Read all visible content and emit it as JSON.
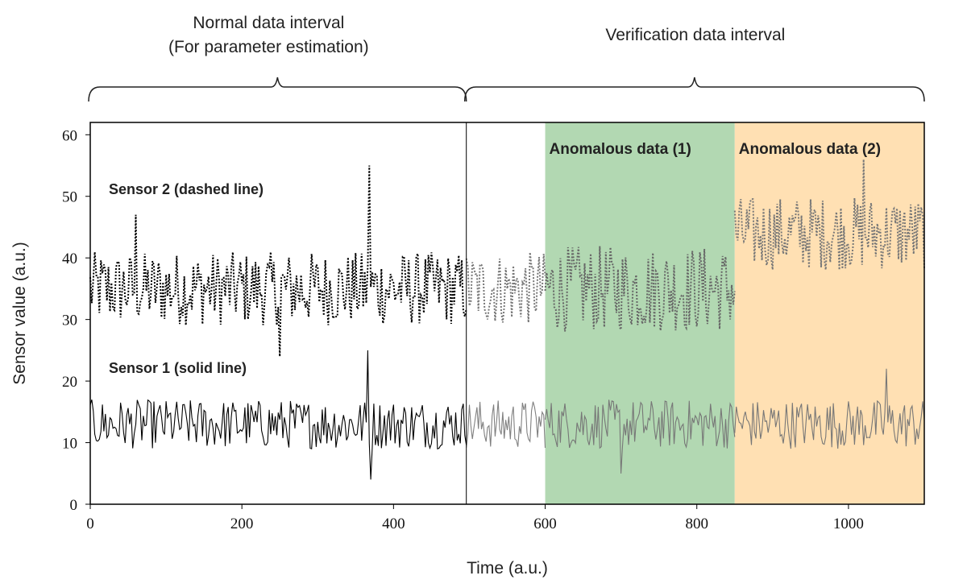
{
  "chart_data": {
    "type": "line",
    "xlabel": "Time (a.u.)",
    "ylabel": "Sensor value (a.u.)",
    "xlim": [
      0,
      1100
    ],
    "ylim": [
      0,
      62
    ],
    "x_ticks": [
      0,
      200,
      400,
      600,
      800,
      1000
    ],
    "y_ticks": [
      0,
      10,
      20,
      30,
      40,
      50,
      60
    ],
    "grid": false,
    "intervals": [
      {
        "label_lines": [
          "Normal data interval",
          "(For parameter estimation)"
        ],
        "x_range": [
          0,
          496
        ]
      },
      {
        "label_lines": [
          "Verification data interval"
        ],
        "x_range": [
          496,
          1100
        ]
      }
    ],
    "regions": [
      {
        "label": "Anomalous data (1)",
        "x_range": [
          600,
          850
        ],
        "color": "#b2d8b2"
      },
      {
        "label": "Anomalous data (2)",
        "x_range": [
          850,
          1100
        ],
        "color": "#ffe0b3"
      }
    ],
    "boundary_x": 496,
    "series": [
      {
        "name": "Sensor 2 (dashed line)",
        "style": "dotted",
        "segments": [
          {
            "x_range": [
              0,
              496
            ],
            "mean": 35,
            "amplitude": 6,
            "color": "#000000"
          },
          {
            "x_range": [
              496,
              600
            ],
            "mean": 35,
            "amplitude": 6,
            "color": "#777777"
          },
          {
            "x_range": [
              600,
              850
            ],
            "mean": 35,
            "amplitude": 7,
            "color": "#666666"
          },
          {
            "x_range": [
              850,
              1100
            ],
            "mean": 44,
            "amplitude": 6,
            "color": "#777777"
          }
        ],
        "x": [
          0,
          60,
          120,
          200,
          250,
          300,
          368,
          420,
          470,
          496,
          550,
          600,
          650,
          700,
          750,
          800,
          850,
          900,
          950,
          1000,
          1020,
          1050,
          1100
        ],
        "values": [
          36,
          47,
          41,
          35,
          24,
          37,
          55,
          37,
          40,
          36,
          32,
          35,
          38,
          33,
          36,
          34,
          40,
          47,
          44,
          43,
          56,
          45,
          42
        ]
      },
      {
        "name": "Sensor 1 (solid line)",
        "style": "solid",
        "segments": [
          {
            "x_range": [
              0,
              496
            ],
            "mean": 13,
            "amplitude": 4,
            "color": "#000000"
          },
          {
            "x_range": [
              496,
              600
            ],
            "mean": 13,
            "amplitude": 4,
            "color": "#808080"
          },
          {
            "x_range": [
              600,
              850
            ],
            "mean": 13,
            "amplitude": 4,
            "color": "#777777"
          },
          {
            "x_range": [
              850,
              1100
            ],
            "mean": 13,
            "amplitude": 4,
            "color": "#777777"
          }
        ],
        "x": [
          0,
          100,
          200,
          300,
          366,
          370,
          400,
          496,
          550,
          600,
          660,
          700,
          800,
          850,
          900,
          1000,
          1050,
          1100
        ],
        "values": [
          13,
          14,
          13,
          12,
          25,
          4,
          13,
          12,
          14,
          13,
          15,
          5,
          13,
          14,
          13,
          12,
          22,
          14
        ]
      }
    ]
  }
}
